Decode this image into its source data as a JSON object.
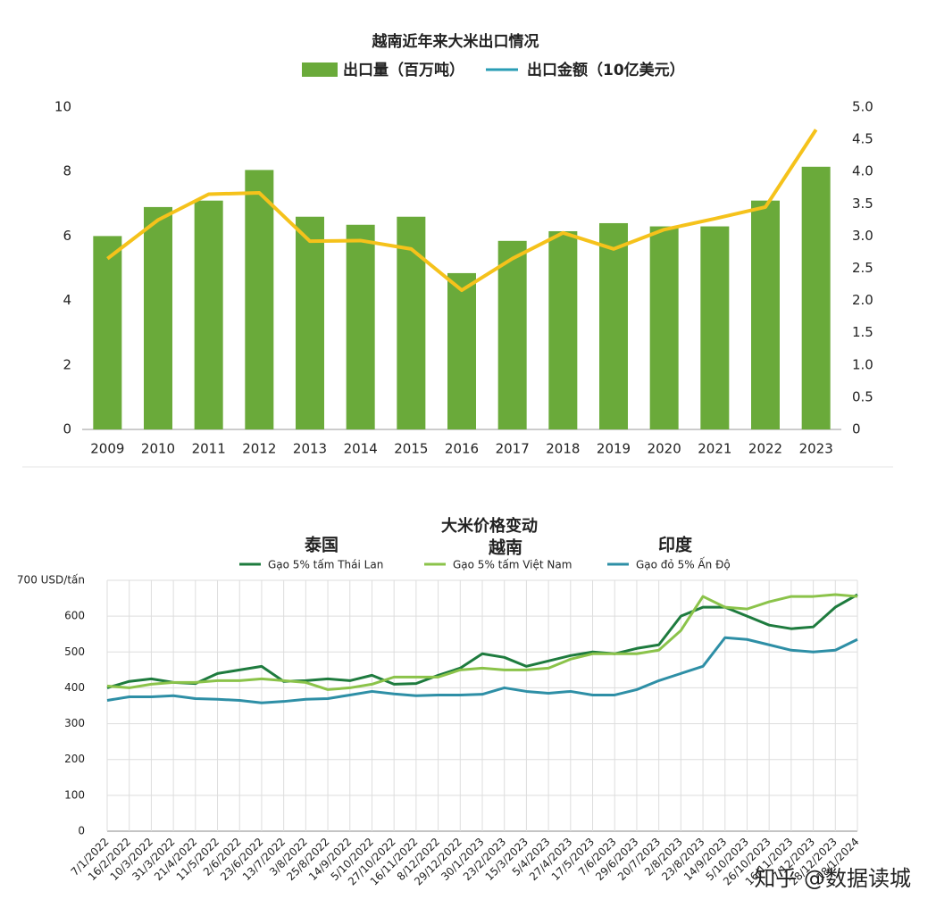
{
  "chart_data": [
    {
      "type": "bar_line",
      "title": "越南近年来大米出口情况",
      "categories": [
        "2009",
        "2010",
        "2011",
        "2012",
        "2013",
        "2014",
        "2015",
        "2016",
        "2017",
        "2018",
        "2019",
        "2020",
        "2021",
        "2022",
        "2023"
      ],
      "series": [
        {
          "name": "出口量（百万吨）",
          "type": "bar",
          "color": "#6aaa3a",
          "values": [
            6.0,
            6.9,
            7.1,
            8.05,
            6.6,
            6.35,
            6.6,
            4.85,
            5.85,
            6.15,
            6.4,
            6.3,
            6.3,
            7.1,
            8.15
          ]
        },
        {
          "name": "出口金额（10亿美元）",
          "type": "line",
          "axis": "y2",
          "color": "#f5c21b",
          "legend_color": "#2a9db5",
          "values": [
            2.65,
            3.25,
            3.65,
            3.67,
            2.92,
            2.93,
            2.8,
            2.16,
            2.65,
            3.05,
            2.8,
            3.1,
            3.27,
            3.45,
            4.65
          ]
        }
      ],
      "ylim": [
        0,
        10
      ],
      "yticks": [
        0,
        2,
        4,
        6,
        8,
        10
      ],
      "y2lim": [
        0,
        5
      ],
      "y2ticks": [
        0,
        0.5,
        {
          "value": 1,
          "label": "1.0"
        },
        1.5,
        {
          "value": 2,
          "label": "2.0"
        },
        2.5,
        {
          "value": 3,
          "label": "3.0"
        },
        3.5,
        {
          "value": 4,
          "label": "4.0"
        },
        4.5,
        {
          "value": 5,
          "label": "5.0"
        }
      ],
      "grid": false
    },
    {
      "type": "line",
      "title": "大米价格变动",
      "annotations": [
        "泰国",
        "越南",
        "印度"
      ],
      "categories": [
        "7/1/2022",
        "16/2/2022",
        "10/3/2022",
        "31/3/2022",
        "21/4/2022",
        "11/5/2022",
        "2/6/2022",
        "23/6/2022",
        "13/7/2022",
        "3/8/2022",
        "25/8/2022",
        "14/9/2022",
        "5/10/2022",
        "27/10/2022",
        "16/11/2022",
        "8/12/2022",
        "29/12/2022",
        "30/1/2023",
        "23/2/2023",
        "15/3/2023",
        "5/4/2023",
        "27/4/2023",
        "17/5/2023",
        "7/6/2023",
        "29/6/2023",
        "20/7/2023",
        "2/8/2023",
        "23/8/2023",
        "14/9/2023",
        "5/10/2023",
        "26/10/2023",
        "16/11/2023",
        "7/12/2023",
        "28/12/2023",
        "18/1/2024"
      ],
      "series": [
        {
          "name": "Gạo 5% tấm Thái Lan",
          "color": "#1e7b3e",
          "values": [
            400,
            418,
            425,
            415,
            412,
            440,
            450,
            460,
            418,
            420,
            425,
            420,
            435,
            410,
            412,
            435,
            455,
            495,
            485,
            460,
            475,
            490,
            500,
            495,
            510,
            520,
            600,
            625,
            625,
            600,
            575,
            565,
            570,
            625,
            660
          ]
        },
        {
          "name": "Gạo 5% tấm Việt Nam",
          "color": "#8bc34a",
          "values": [
            405,
            400,
            410,
            415,
            415,
            420,
            420,
            425,
            420,
            415,
            395,
            400,
            410,
            430,
            430,
            430,
            450,
            455,
            450,
            450,
            455,
            480,
            495,
            495,
            495,
            505,
            560,
            655,
            625,
            620,
            640,
            655,
            655,
            660,
            655
          ]
        },
        {
          "name": "Gạo đỏ 5% Ấn Độ",
          "color": "#2e8fa6",
          "values": [
            365,
            375,
            375,
            378,
            370,
            368,
            365,
            358,
            362,
            368,
            370,
            380,
            390,
            383,
            378,
            380,
            380,
            382,
            400,
            390,
            385,
            390,
            380,
            380,
            395,
            420,
            440,
            460,
            540,
            535,
            520,
            505,
            500,
            505,
            535
          ]
        }
      ],
      "ylim": [
        0,
        700
      ],
      "yticks": [
        0,
        100,
        200,
        300,
        400,
        500,
        600,
        {
          "value": 700,
          "label": "700 USD/tấn"
        }
      ],
      "grid": true,
      "watermark": "知乎 @数据读城"
    }
  ]
}
